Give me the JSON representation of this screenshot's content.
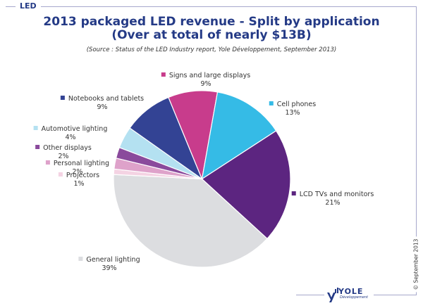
{
  "header": {
    "section_label": "LED",
    "title_line1": "2013 packaged LED revenue - Split by application",
    "title_line2": "(Over at total of nearly $13B)",
    "source": "(Source : Status of the LED Industry report, Yole Développement, September 2013)"
  },
  "footer": {
    "copyright": "© September 2013",
    "logo_text": "YOLE",
    "logo_subtext": "Développement"
  },
  "chart_data": {
    "type": "pie",
    "title": "2013 packaged LED revenue - Split by application",
    "subtitle": "(Over at total of nearly $13B)",
    "unit": "%",
    "slices": [
      {
        "label": "General lighting",
        "value": 39,
        "display": "39%",
        "color": "#dcdde0"
      },
      {
        "label": "Projectors",
        "value": 1,
        "display": "1%",
        "color": "#f4d3e3"
      },
      {
        "label": "Personal lighting",
        "value": 2,
        "display": "2%",
        "color": "#dea2ca"
      },
      {
        "label": "Other displays",
        "value": 2,
        "display": "2%",
        "color": "#8a4a9c"
      },
      {
        "label": "Automotive lighting",
        "value": 4,
        "display": "4%",
        "color": "#b4e1f1"
      },
      {
        "label": "Notebooks and tablets",
        "value": 9,
        "display": "9%",
        "color": "#334394"
      },
      {
        "label": "Signs and large displays",
        "value": 9,
        "display": "9%",
        "color": "#c83c8c"
      },
      {
        "label": "Cell phones",
        "value": 13,
        "display": "13%",
        "color": "#35bbe6"
      },
      {
        "label": "LCD TVs and monitors",
        "value": 21,
        "display": "21%",
        "color": "#5c2580"
      }
    ]
  }
}
